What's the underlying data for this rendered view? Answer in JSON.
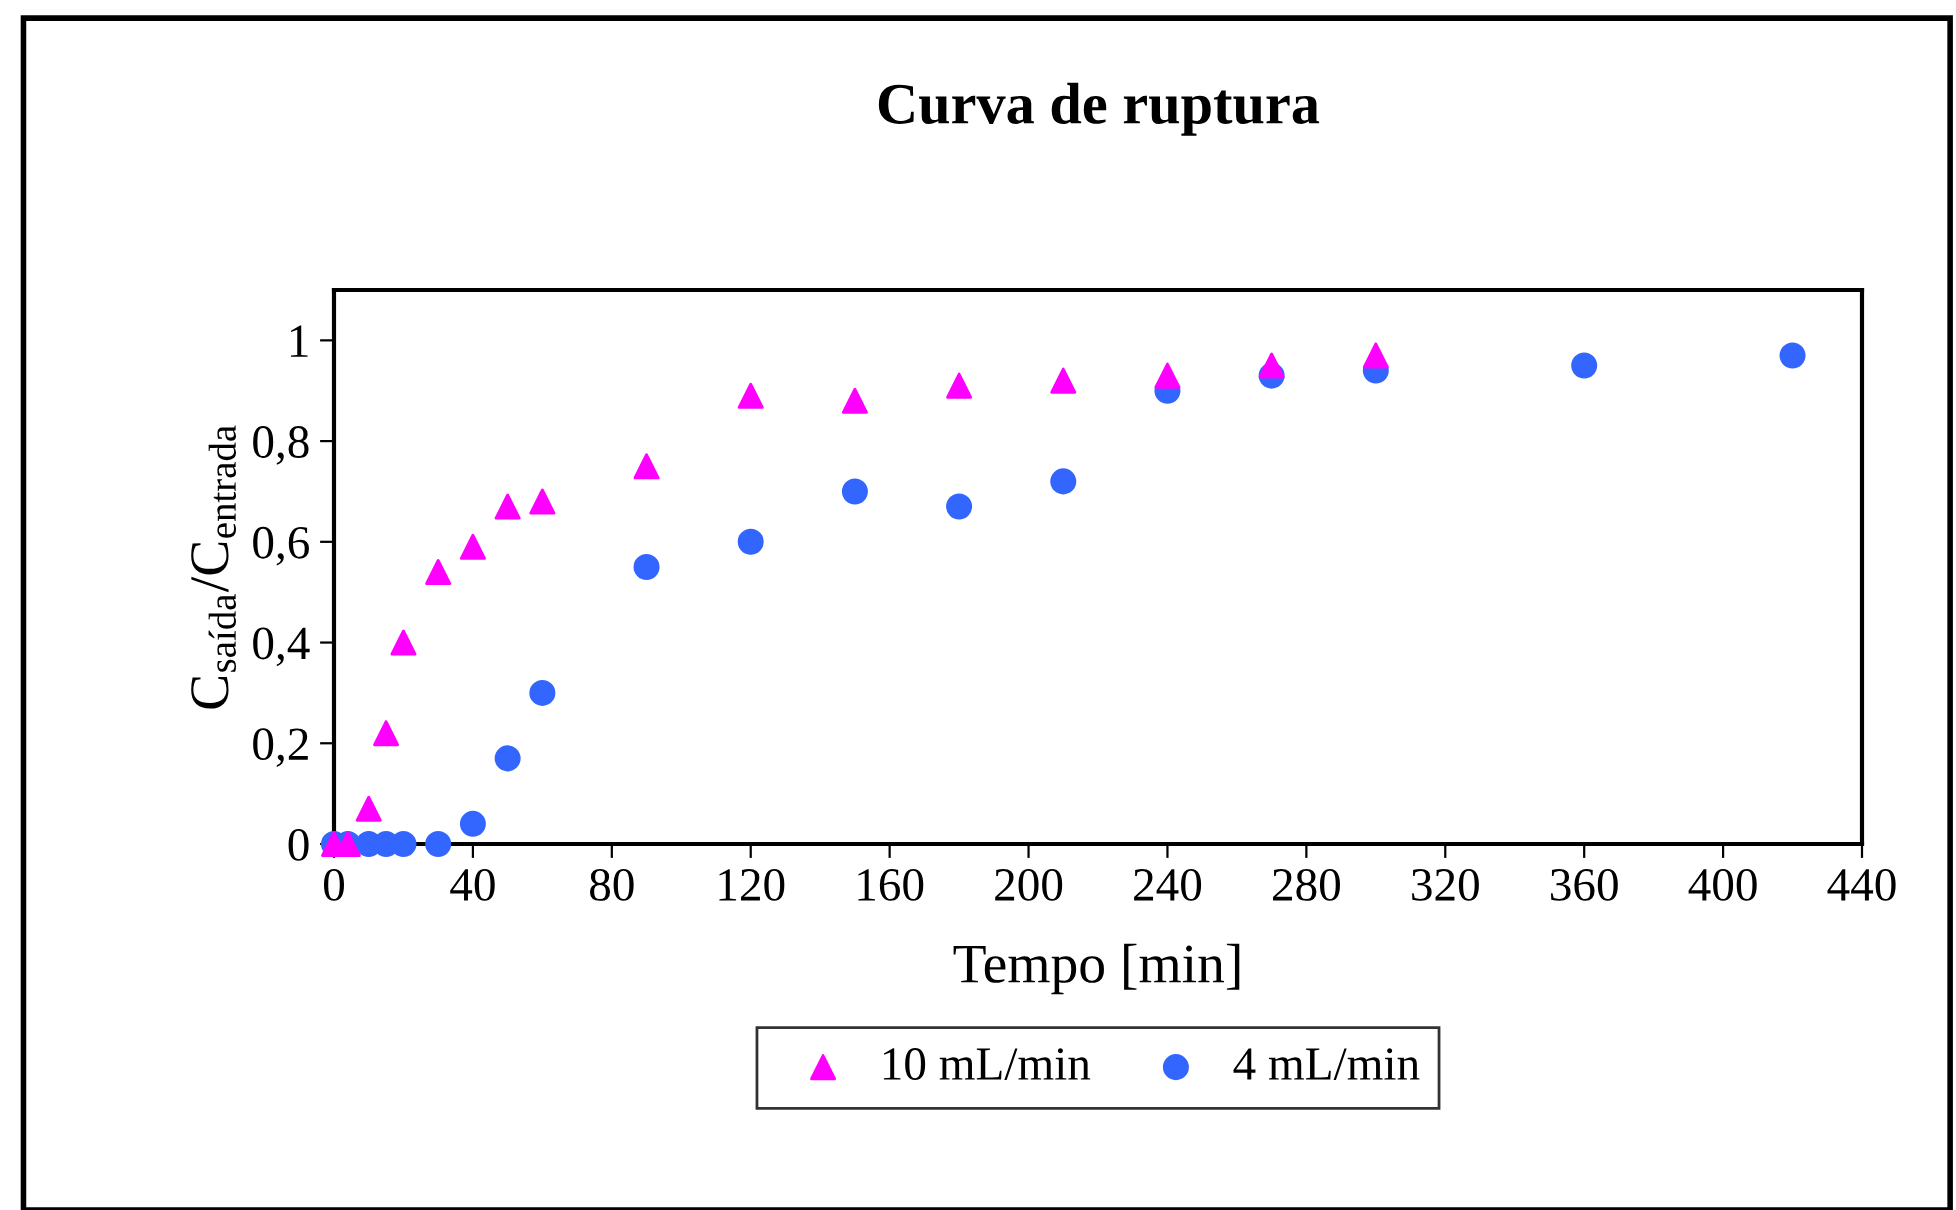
{
  "chart_data": {
    "type": "scatter",
    "title": "Curva de ruptura",
    "xlabel": "Tempo [min]",
    "ylabel": "C$_{saída}$/C$_{entrada}$",
    "series": [
      {
        "name": "10 mL/min",
        "color": "#ff00ff",
        "marker": "triangle",
        "x": [
          0,
          4,
          10,
          15,
          20,
          30,
          40,
          50,
          60,
          90,
          120,
          150,
          180,
          210,
          240,
          270,
          300
        ],
        "values": [
          0,
          0,
          0.07,
          0.22,
          0.4,
          0.54,
          0.59,
          0.67,
          0.68,
          0.75,
          0.89,
          0.88,
          0.91,
          0.92,
          0.93,
          0.95,
          0.97
        ]
      },
      {
        "name": "4 mL/min",
        "color": "#3366ff",
        "marker": "circle",
        "x": [
          0,
          4,
          10,
          15,
          20,
          30,
          40,
          50,
          60,
          90,
          120,
          150,
          180,
          210,
          240,
          270,
          300,
          360,
          420
        ],
        "values": [
          0,
          0,
          0,
          0,
          0,
          0,
          0.04,
          0.17,
          0.3,
          0.55,
          0.6,
          0.7,
          0.67,
          0.72,
          0.9,
          0.93,
          0.94,
          0.95,
          0.97
        ]
      }
    ],
    "xlim": [
      0,
      440
    ],
    "xticks": [
      0,
      40,
      80,
      120,
      160,
      200,
      240,
      280,
      320,
      360,
      400,
      440
    ],
    "ylim": [
      0,
      1.1
    ],
    "yticks": [
      0,
      {
        "value": 0.2,
        "label": "0,2"
      },
      {
        "value": 0.4,
        "label": "0,4"
      },
      {
        "value": 0.6,
        "label": "0,6"
      },
      {
        "value": 0.8,
        "label": "0,8"
      },
      1
    ],
    "grid": false,
    "legend": "bottom"
  }
}
